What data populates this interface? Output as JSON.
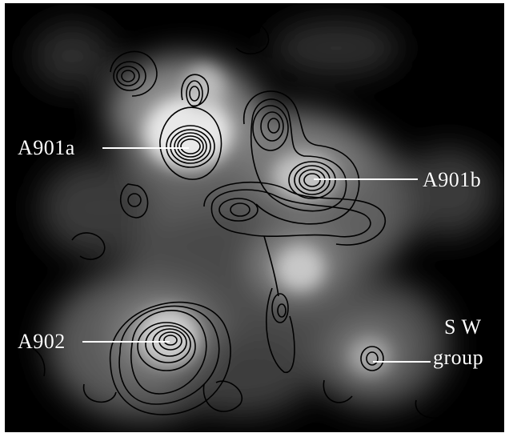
{
  "figure": {
    "background_color": "#000000",
    "contour_color": "#000000",
    "leader_line_color": "#ffffff"
  },
  "labels": {
    "a901a": "A901a",
    "a901b": "A901b",
    "a902": "A902",
    "sw_line1": "S W",
    "sw_line2": "group"
  }
}
